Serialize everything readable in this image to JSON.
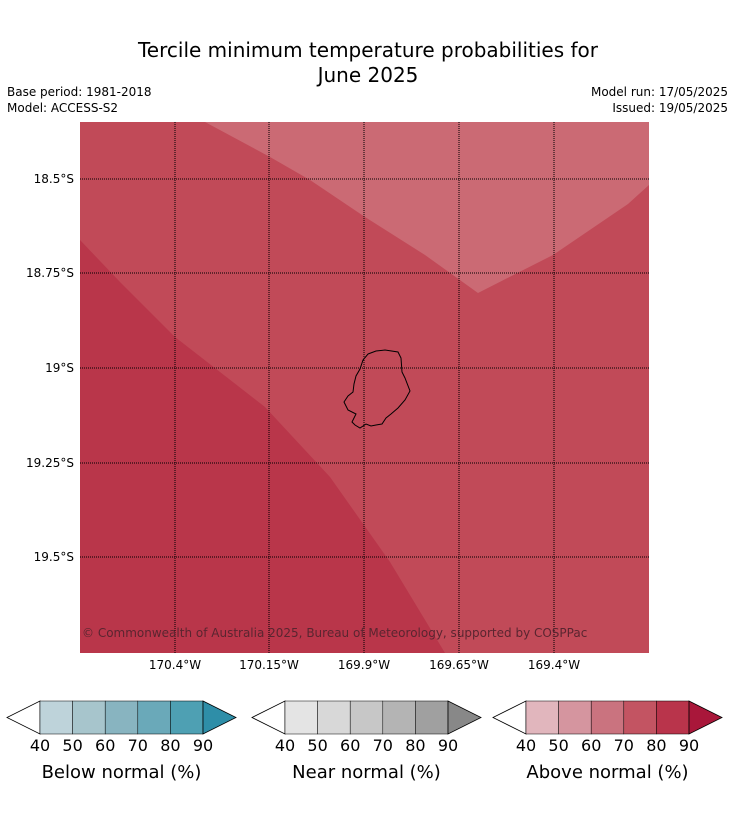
{
  "title_line1": "Tercile minimum temperature probabilities for",
  "title_line2": "June 2025",
  "base_period": "Base period: 1981-2018",
  "model": "Model: ACCESS-S2",
  "model_run": "Model run: 17/05/2025",
  "issued": "Issued: 19/05/2025",
  "lat_labels": [
    "18.5°S",
    "18.75°S",
    "19°S",
    "19.25°S",
    "19.5°S"
  ],
  "lon_labels": [
    "170.4°W",
    "170.15°W",
    "169.9°W",
    "169.65°W",
    "169.4°W"
  ],
  "copyright": "© Commonwealth of Australia 2025, Bureau of Meteorology, supported by COSPPac",
  "colorbars": [
    {
      "label": "Below normal (%)",
      "ticks": [
        "40",
        "50",
        "60",
        "70",
        "80",
        "90"
      ],
      "colors": [
        "#bed3da",
        "#a7c5cc",
        "#88b4c0",
        "#6aa9b9",
        "#4ea0b3",
        "#2e8ea8"
      ]
    },
    {
      "label": "Near normal (%)",
      "ticks": [
        "40",
        "50",
        "60",
        "70",
        "80",
        "90"
      ],
      "colors": [
        "#e4e4e4",
        "#d8d8d8",
        "#c7c7c7",
        "#b4b4b4",
        "#a0a0a0",
        "#888888"
      ]
    },
    {
      "label": "Above normal (%)",
      "ticks": [
        "40",
        "50",
        "60",
        "70",
        "80",
        "90"
      ],
      "colors": [
        "#e1b6bd",
        "#d5959f",
        "#ca737f",
        "#c35462",
        "#b9344b",
        "#a9173a"
      ]
    }
  ],
  "map_regions": [
    {
      "category": "Above normal",
      "range": "60-70",
      "color": "#cb6a74"
    },
    {
      "category": "Above normal",
      "range": "70-80",
      "color": "#c14a58"
    },
    {
      "category": "Above normal",
      "range": "80-90",
      "color": "#b9364a"
    }
  ]
}
